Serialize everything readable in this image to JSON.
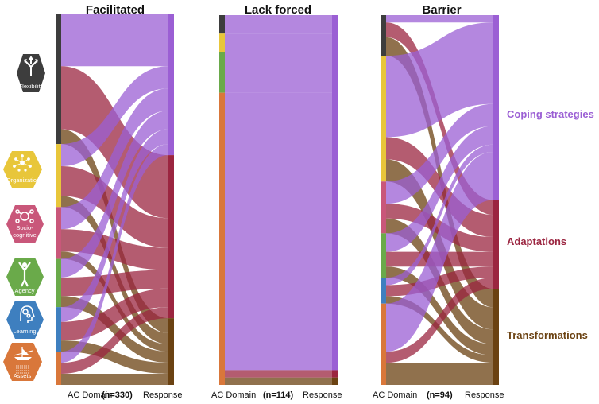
{
  "panels": [
    {
      "title": "Facilitated",
      "left_label": "AC Domain",
      "n_label": "(n=330)",
      "right_label": "Response",
      "domains": [
        {
          "key": "flexibility",
          "share": 0.35
        },
        {
          "key": "organization",
          "share": 0.17
        },
        {
          "key": "socio_cognitive",
          "share": 0.14
        },
        {
          "key": "agency",
          "share": 0.13
        },
        {
          "key": "learning",
          "share": 0.12
        },
        {
          "key": "assets",
          "share": 0.09
        }
      ],
      "responses": [
        {
          "key": "coping",
          "share": 0.38
        },
        {
          "key": "adaptation",
          "share": 0.44
        },
        {
          "key": "transformation",
          "share": 0.18
        }
      ],
      "flows": [
        {
          "from": "flexibility",
          "to": "coping",
          "share": 0.14
        },
        {
          "from": "flexibility",
          "to": "adaptation",
          "share": 0.17
        },
        {
          "from": "flexibility",
          "to": "transformation",
          "share": 0.04
        },
        {
          "from": "organization",
          "to": "coping",
          "share": 0.06
        },
        {
          "from": "organization",
          "to": "adaptation",
          "share": 0.08
        },
        {
          "from": "organization",
          "to": "transformation",
          "share": 0.03
        },
        {
          "from": "socio_cognitive",
          "to": "coping",
          "share": 0.06
        },
        {
          "from": "socio_cognitive",
          "to": "adaptation",
          "share": 0.06
        },
        {
          "from": "socio_cognitive",
          "to": "transformation",
          "share": 0.02
        },
        {
          "from": "agency",
          "to": "coping",
          "share": 0.05
        },
        {
          "from": "agency",
          "to": "adaptation",
          "share": 0.05
        },
        {
          "from": "agency",
          "to": "transformation",
          "share": 0.03
        },
        {
          "from": "learning",
          "to": "coping",
          "share": 0.04
        },
        {
          "from": "learning",
          "to": "adaptation",
          "share": 0.05
        },
        {
          "from": "learning",
          "to": "transformation",
          "share": 0.03
        },
        {
          "from": "assets",
          "to": "coping",
          "share": 0.03
        },
        {
          "from": "assets",
          "to": "adaptation",
          "share": 0.03
        },
        {
          "from": "assets",
          "to": "transformation",
          "share": 0.03
        }
      ]
    },
    {
      "title": "Lack forced",
      "left_label": "AC Domain",
      "n_label": "(n=114)",
      "right_label": "Response",
      "domains": [
        {
          "key": "flexibility",
          "share": 0.05
        },
        {
          "key": "organization",
          "share": 0.05
        },
        {
          "key": "agency",
          "share": 0.11
        },
        {
          "key": "assets",
          "share": 0.79
        }
      ],
      "responses": [
        {
          "key": "coping",
          "share": 0.96
        },
        {
          "key": "adaptation",
          "share": 0.02
        },
        {
          "key": "transformation",
          "share": 0.02
        }
      ],
      "flows": [
        {
          "from": "flexibility",
          "to": "coping",
          "share": 0.05
        },
        {
          "from": "organization",
          "to": "coping",
          "share": 0.05
        },
        {
          "from": "agency",
          "to": "coping",
          "share": 0.11
        },
        {
          "from": "assets",
          "to": "coping",
          "share": 0.75
        },
        {
          "from": "assets",
          "to": "adaptation",
          "share": 0.02
        },
        {
          "from": "assets",
          "to": "transformation",
          "share": 0.02
        }
      ]
    },
    {
      "title": "Barrier",
      "left_label": "AC Domain",
      "n_label": "(n=94)",
      "right_label": "Response",
      "domains": [
        {
          "key": "flexibility",
          "share": 0.11
        },
        {
          "key": "organization",
          "share": 0.34
        },
        {
          "key": "socio_cognitive",
          "share": 0.14
        },
        {
          "key": "agency",
          "share": 0.12
        },
        {
          "key": "learning",
          "share": 0.07
        },
        {
          "key": "assets",
          "share": 0.22
        }
      ],
      "responses": [
        {
          "key": "coping",
          "share": 0.5
        },
        {
          "key": "adaptation",
          "share": 0.24
        },
        {
          "key": "transformation",
          "share": 0.26
        }
      ],
      "flows": [
        {
          "from": "flexibility",
          "to": "coping",
          "share": 0.02
        },
        {
          "from": "flexibility",
          "to": "adaptation",
          "share": 0.04
        },
        {
          "from": "flexibility",
          "to": "transformation",
          "share": 0.05
        },
        {
          "from": "organization",
          "to": "coping",
          "share": 0.22
        },
        {
          "from": "organization",
          "to": "adaptation",
          "share": 0.06
        },
        {
          "from": "organization",
          "to": "transformation",
          "share": 0.06
        },
        {
          "from": "socio_cognitive",
          "to": "coping",
          "share": 0.06
        },
        {
          "from": "socio_cognitive",
          "to": "adaptation",
          "share": 0.04
        },
        {
          "from": "socio_cognitive",
          "to": "transformation",
          "share": 0.04
        },
        {
          "from": "agency",
          "to": "coping",
          "share": 0.05
        },
        {
          "from": "agency",
          "to": "adaptation",
          "share": 0.04
        },
        {
          "from": "agency",
          "to": "transformation",
          "share": 0.03
        },
        {
          "from": "learning",
          "to": "coping",
          "share": 0.02
        },
        {
          "from": "learning",
          "to": "adaptation",
          "share": 0.03
        },
        {
          "from": "learning",
          "to": "transformation",
          "share": 0.02
        },
        {
          "from": "assets",
          "to": "coping",
          "share": 0.13
        },
        {
          "from": "assets",
          "to": "adaptation",
          "share": 0.03
        },
        {
          "from": "assets",
          "to": "transformation",
          "share": 0.06
        }
      ]
    }
  ],
  "domain_labels": {
    "flexibility": "Flexibility",
    "organization": "Organization",
    "socio_cognitive_line1": "Socio-",
    "socio_cognitive_line2": "cognitive",
    "agency": "Agency",
    "learning": "Learning",
    "assets": "Assets"
  },
  "domain_icons": {
    "flexibility": "diverging-arrows-icon",
    "organization": "network-icon",
    "socio_cognitive": "head-cogs-icon",
    "agency": "person-raised-arms-icon",
    "learning": "head-gears-icon",
    "assets": "boat-icon"
  },
  "domain_colors": {
    "flexibility": "#3d3d3d",
    "organization": "#e8c63a",
    "socio_cognitive": "#c9577a",
    "agency": "#6aaa4a",
    "learning": "#3e7fbf",
    "assets": "#d9773a"
  },
  "response_labels": {
    "coping": "Coping strategies",
    "adaptation": "Adaptations",
    "transformation": "Transformations"
  },
  "response_colors": {
    "coping": "#9b5fd4",
    "adaptation": "#9b2540",
    "transformation": "#6b4212"
  }
}
